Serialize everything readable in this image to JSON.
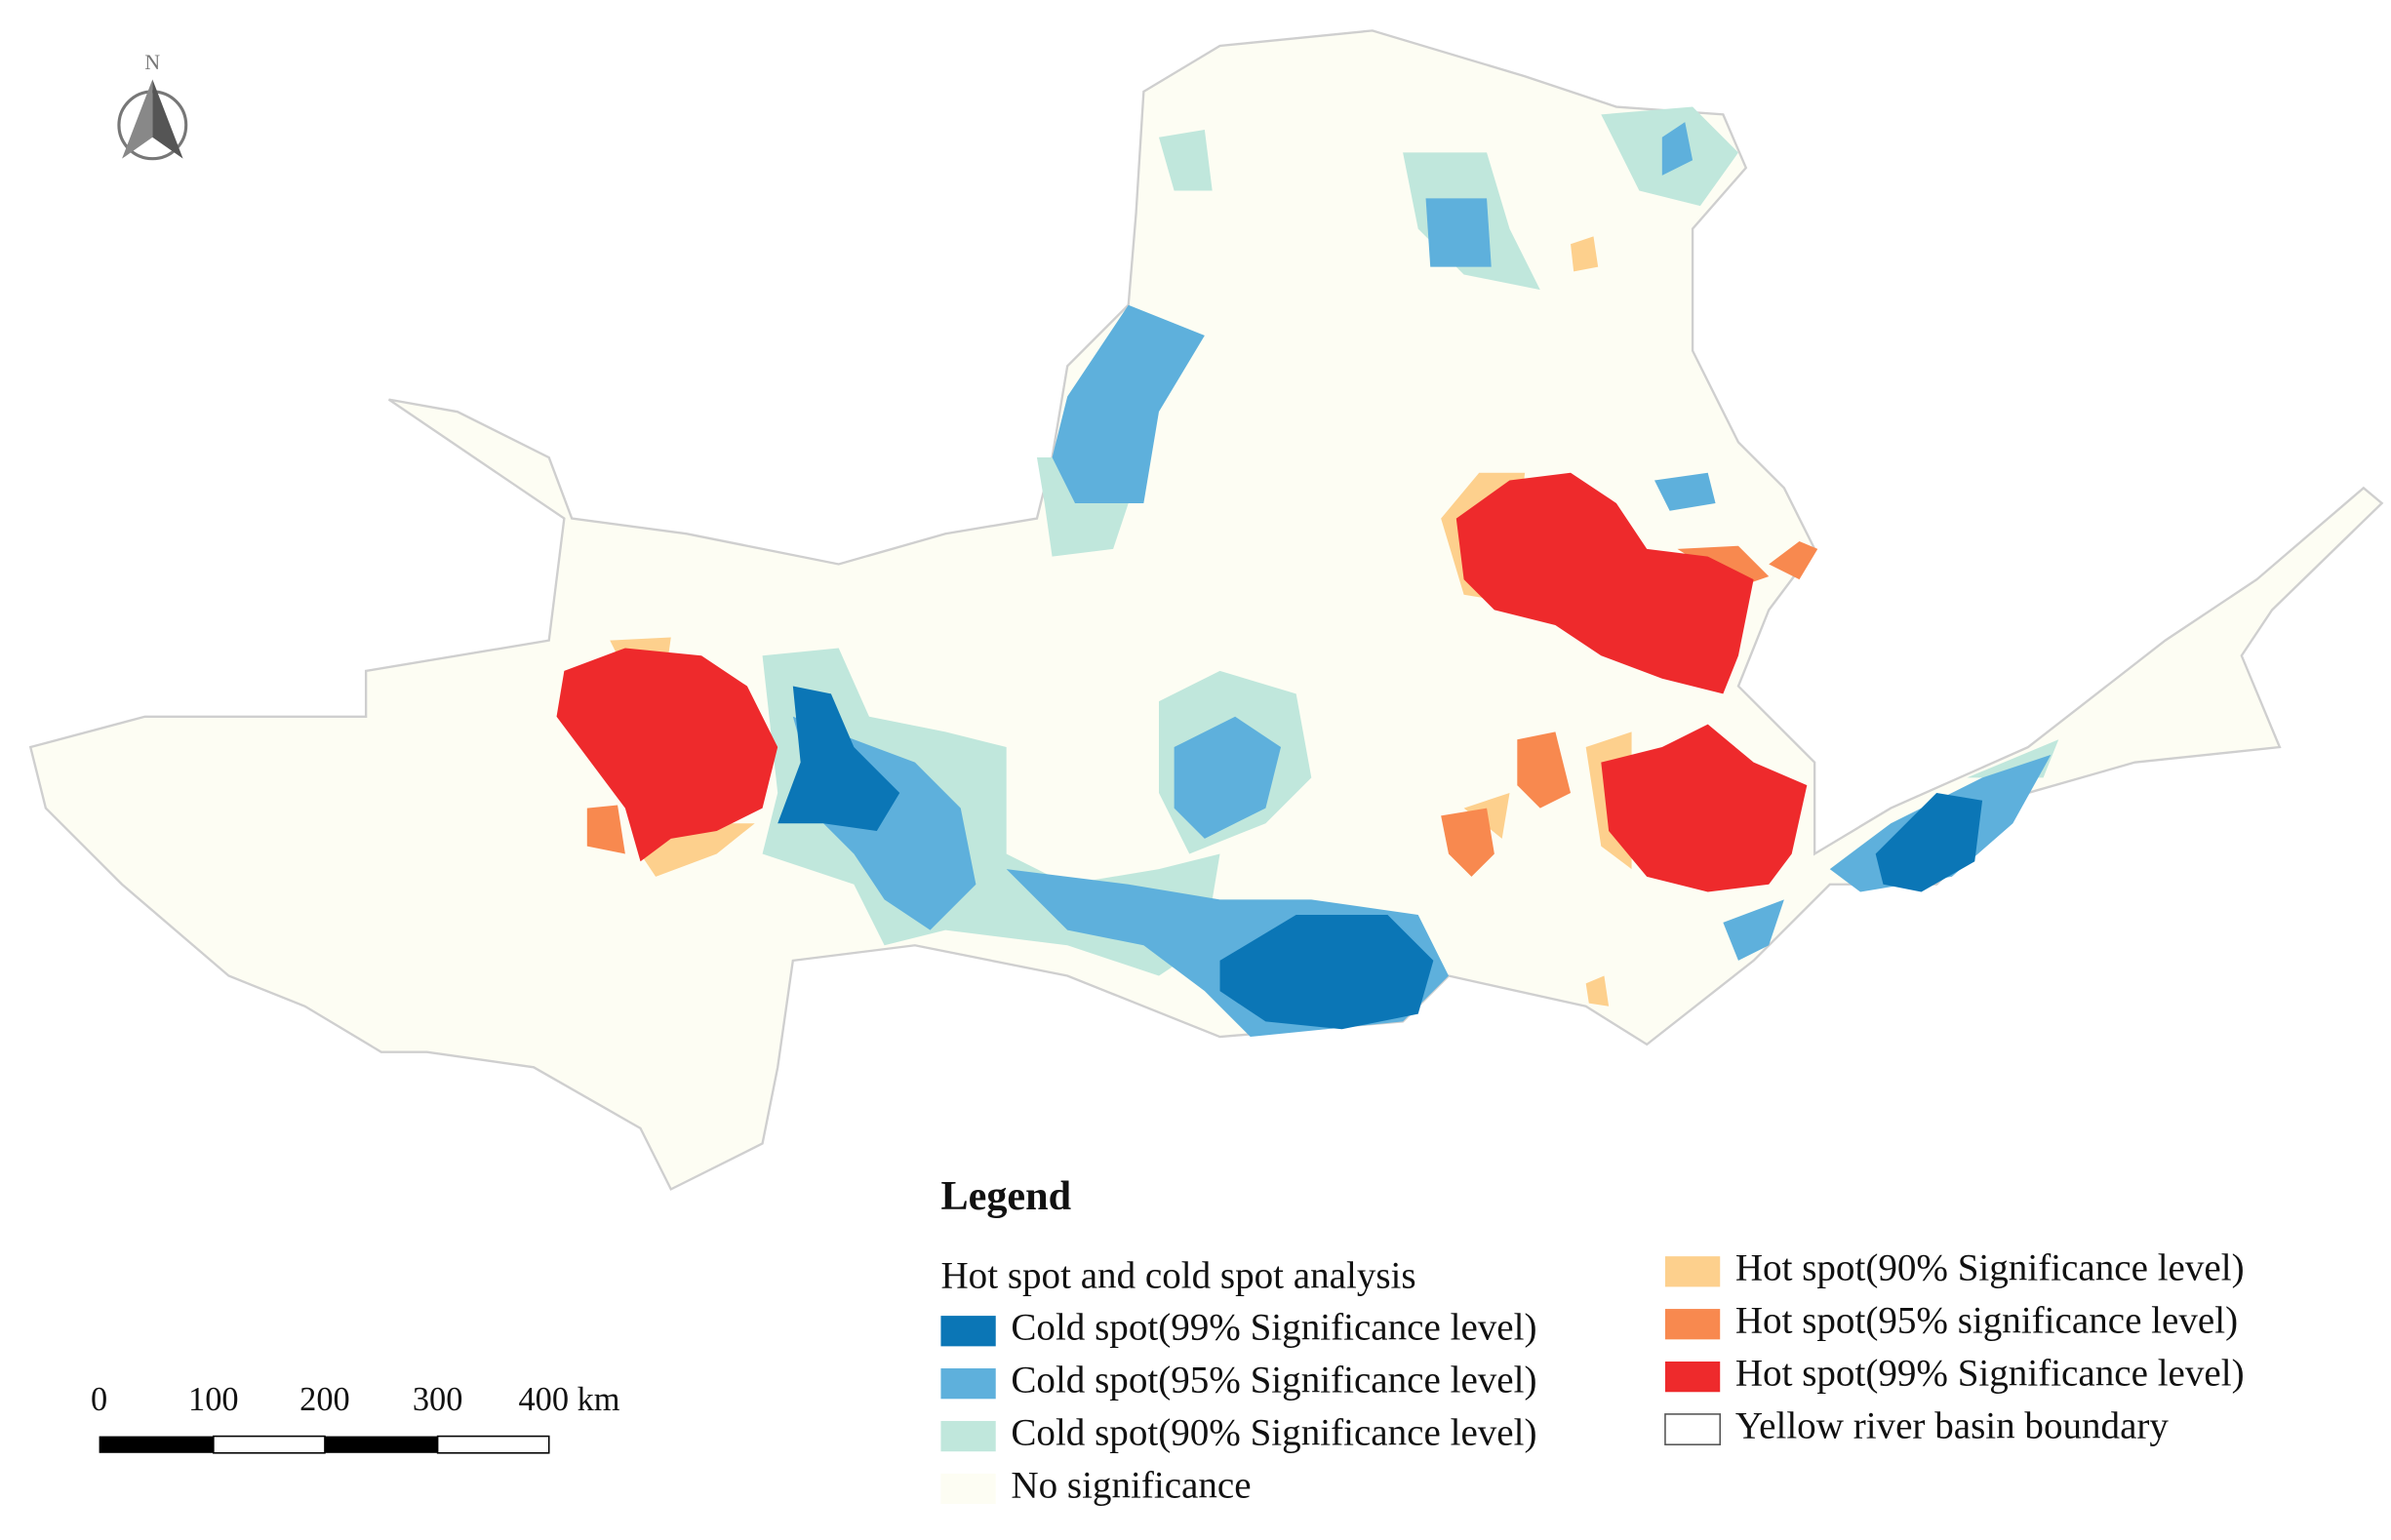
{
  "north_arrow": {
    "label": "N"
  },
  "legend": {
    "title": "Legend",
    "subtitle": "Hot spot and cold spot analysis",
    "items": [
      {
        "label": "Cold spot(99% Significance level)",
        "color": "#0b76b6"
      },
      {
        "label": "Cold spot(95% Significance level)",
        "color": "#5eb0dc"
      },
      {
        "label": "Cold spot(90% Significance level)",
        "color": "#c0e7dc"
      },
      {
        "label": "No significance",
        "color": "#fdfdf3"
      },
      {
        "label": "Hot spot(90% Significance level)",
        "color": "#fdd08d"
      },
      {
        "label": "Hot spot(95% significance level)",
        "color": "#f8894f"
      },
      {
        "label": "Hot spot(99% Significance level)",
        "color": "#ee2a2c"
      },
      {
        "label": "Yellow river basin boundary",
        "color": "#ffffff"
      }
    ]
  },
  "scale_bar": {
    "labels": [
      "0",
      "100",
      "200",
      "300",
      "400 km"
    ]
  }
}
